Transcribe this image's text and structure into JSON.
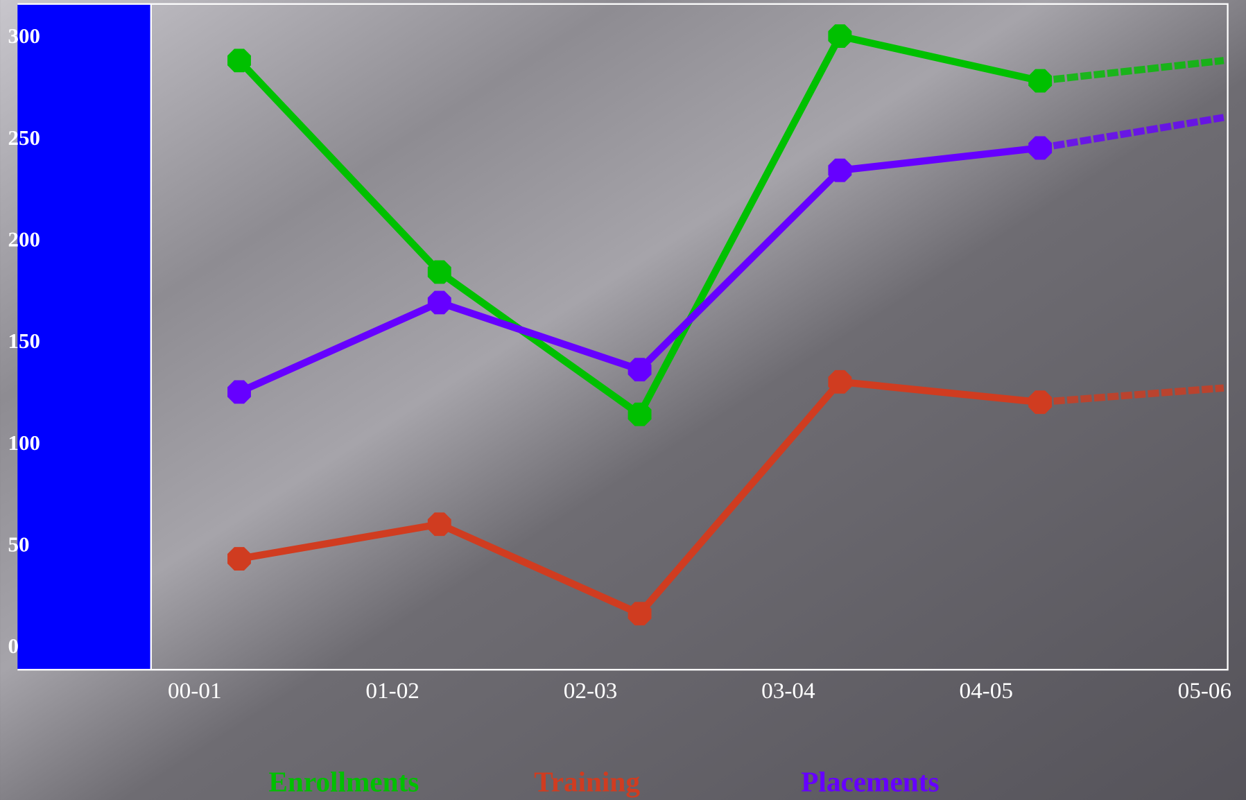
{
  "chart_data": {
    "type": "line",
    "categories": [
      "00-01",
      "01-02",
      "02-03",
      "03-04",
      "04-05",
      "05-06"
    ],
    "series": [
      {
        "name": "Enrollments",
        "color": "#00c000",
        "values": [
          289,
          185,
          115,
          301,
          279,
          289
        ]
      },
      {
        "name": "Training",
        "color": "#d03c20",
        "values": [
          44,
          61,
          17,
          131,
          121,
          128
        ]
      },
      {
        "name": "Placements",
        "color": "#6600ff",
        "values": [
          126,
          170,
          137,
          235,
          246,
          261
        ]
      }
    ],
    "ylim": [
      0,
      300
    ],
    "yticks": [
      0,
      50,
      100,
      150,
      200,
      250,
      300
    ],
    "grid": false
  }
}
